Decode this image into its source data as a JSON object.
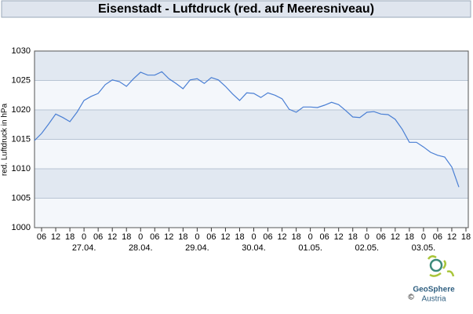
{
  "chart_data": {
    "type": "line",
    "title": "Eisenstadt - Luftdruck (red. auf Meeresniveau)",
    "ylabel": "red. Luftdruck in hPa",
    "color": "#4a7fd4",
    "grid": true,
    "xlim": [
      "26.04. 03",
      "03.05. 19"
    ],
    "ylim": [
      1000,
      1030
    ],
    "yticks": [
      1000,
      1005,
      1010,
      1015,
      1020,
      1025,
      1030
    ],
    "xticks": [
      {
        "value": "26.04. 06",
        "label": "06"
      },
      {
        "value": "26.04. 12",
        "label": "12"
      },
      {
        "value": "26.04. 18",
        "label": "18"
      },
      {
        "value": "27.04. 00",
        "label": "0"
      },
      {
        "value": "27.04. 06",
        "label": "06"
      },
      {
        "value": "27.04. 12",
        "label": "12"
      },
      {
        "value": "27.04. 18",
        "label": "18"
      },
      {
        "value": "28.04. 00",
        "label": "0"
      },
      {
        "value": "28.04. 06",
        "label": "06"
      },
      {
        "value": "28.04. 12",
        "label": "12"
      },
      {
        "value": "28.04. 18",
        "label": "18"
      },
      {
        "value": "29.04. 00",
        "label": "0"
      },
      {
        "value": "29.04. 06",
        "label": "06"
      },
      {
        "value": "29.04. 12",
        "label": "12"
      },
      {
        "value": "29.04. 18",
        "label": "18"
      },
      {
        "value": "30.04. 00",
        "label": "0"
      },
      {
        "value": "30.04. 06",
        "label": "06"
      },
      {
        "value": "30.04. 12",
        "label": "12"
      },
      {
        "value": "30.04. 18",
        "label": "18"
      },
      {
        "value": "01.05. 00",
        "label": "0"
      },
      {
        "value": "01.05. 06",
        "label": "06"
      },
      {
        "value": "01.05. 12",
        "label": "12"
      },
      {
        "value": "01.05. 18",
        "label": "18"
      },
      {
        "value": "02.05. 00",
        "label": "0"
      },
      {
        "value": "02.05. 06",
        "label": "06"
      },
      {
        "value": "02.05. 12",
        "label": "12"
      },
      {
        "value": "02.05. 18",
        "label": "18"
      },
      {
        "value": "03.05. 00",
        "label": "0"
      },
      {
        "value": "03.05. 06",
        "label": "06"
      },
      {
        "value": "03.05. 12",
        "label": "12"
      },
      {
        "value": "03.05. 18",
        "label": "18"
      }
    ],
    "date_labels": [
      {
        "value": "27.04. 00",
        "label": "27.04."
      },
      {
        "value": "28.04. 00",
        "label": "28.04."
      },
      {
        "value": "29.04. 00",
        "label": "29.04."
      },
      {
        "value": "30.04. 00",
        "label": "30.04."
      },
      {
        "value": "01.05. 00",
        "label": "01.05."
      },
      {
        "value": "02.05. 00",
        "label": "02.05."
      },
      {
        "value": "03.05. 00",
        "label": "03.05."
      }
    ],
    "x": [
      "26.04. 03",
      "26.04. 06",
      "26.04. 09",
      "26.04. 12",
      "26.04. 15",
      "26.04. 18",
      "26.04. 21",
      "27.04. 00",
      "27.04. 03",
      "27.04. 06",
      "27.04. 09",
      "27.04. 12",
      "27.04. 15",
      "27.04. 18",
      "27.04. 21",
      "28.04. 00",
      "28.04. 03",
      "28.04. 06",
      "28.04. 09",
      "28.04. 12",
      "28.04. 15",
      "28.04. 18",
      "28.04. 21",
      "29.04. 00",
      "29.04. 03",
      "29.04. 06",
      "29.04. 09",
      "29.04. 12",
      "29.04. 15",
      "29.04. 18",
      "29.04. 21",
      "30.04. 00",
      "30.04. 03",
      "30.04. 06",
      "30.04. 09",
      "30.04. 12",
      "30.04. 15",
      "30.04. 18",
      "30.04. 21",
      "01.05. 00",
      "01.05. 03",
      "01.05. 06",
      "01.05. 09",
      "01.05. 12",
      "01.05. 15",
      "01.05. 18",
      "01.05. 21",
      "02.05. 00",
      "02.05. 03",
      "02.05. 06",
      "02.05. 09",
      "02.05. 12",
      "02.05. 15",
      "02.05. 18",
      "02.05. 21",
      "03.05. 00",
      "03.05. 03",
      "03.05. 06",
      "03.05. 09",
      "03.05. 12",
      "03.05. 15"
    ],
    "values": [
      1014.8,
      1016.0,
      1017.6,
      1019.3,
      1018.7,
      1018.0,
      1019.6,
      1021.6,
      1022.3,
      1022.8,
      1024.3,
      1025.1,
      1024.8,
      1024.0,
      1025.3,
      1026.4,
      1025.9,
      1025.9,
      1026.5,
      1025.3,
      1024.5,
      1023.6,
      1025.1,
      1025.3,
      1024.5,
      1025.5,
      1025.1,
      1024.0,
      1022.7,
      1021.6,
      1022.9,
      1022.8,
      1022.1,
      1022.9,
      1022.5,
      1021.9,
      1020.1,
      1019.6,
      1020.5,
      1020.5,
      1020.4,
      1020.8,
      1021.3,
      1020.9,
      1019.9,
      1018.8,
      1018.7,
      1019.6,
      1019.7,
      1019.3,
      1019.2,
      1018.4,
      1016.7,
      1014.5,
      1014.5,
      1013.7,
      1012.8,
      1012.3,
      1012.0,
      1010.3,
      1006.9
    ]
  },
  "logo": {
    "copyright": "©",
    "name": "GeoSphere",
    "sub": "Austria"
  }
}
